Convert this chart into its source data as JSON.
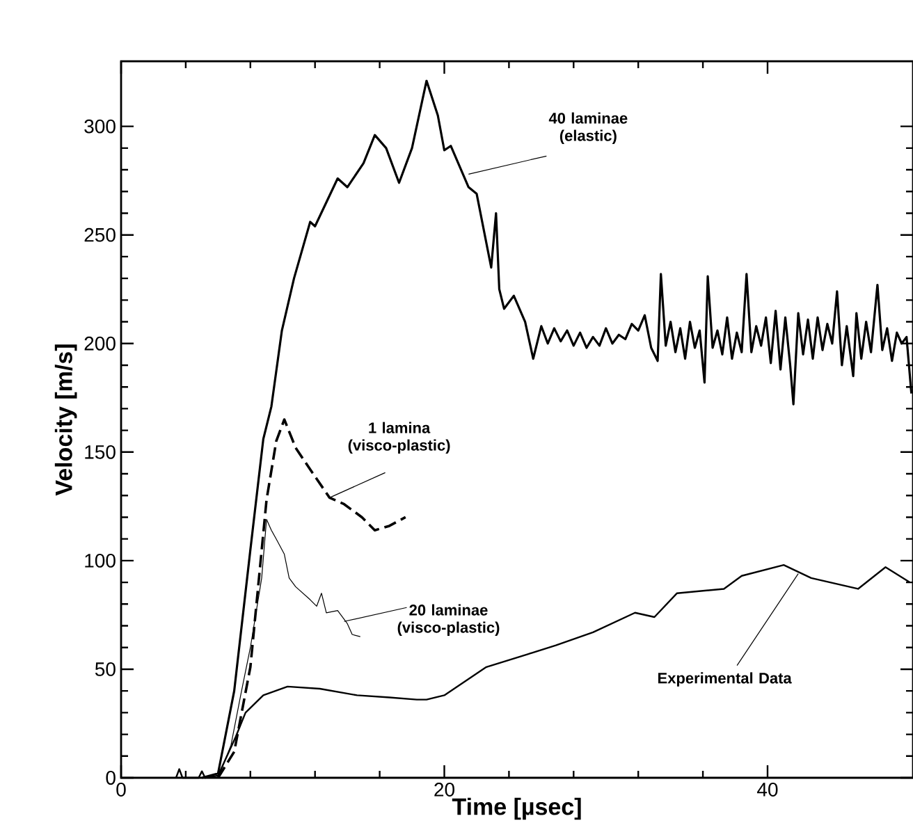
{
  "chart_data": {
    "type": "line",
    "xlabel": "Time [µsec]",
    "ylabel": "Velocity [m/s]",
    "xlim": [
      0,
      49
    ],
    "ylim": [
      0,
      330
    ],
    "xticks": [
      0,
      20,
      40
    ],
    "yticks": [
      0,
      50,
      100,
      150,
      200,
      250,
      300
    ],
    "series": [
      {
        "color": "#000000",
        "line_style": "solid",
        "x": [
          5.0,
          6.0,
          7.0,
          8.0,
          8.8,
          9.3,
          9.95,
          10.7,
          11.7,
          12.0,
          13.4,
          14.0,
          15.0,
          15.7,
          16.4,
          17.2,
          18.0,
          18.9,
          19.6,
          20.0,
          20.4,
          21.5,
          22.0,
          22.9,
          23.2,
          23.4,
          23.7,
          24.3,
          25.0,
          25.5,
          26.0,
          26.4,
          26.8,
          27.2,
          27.6,
          28.0,
          28.4,
          28.8,
          29.2,
          29.6,
          30.0,
          30.4,
          30.8,
          31.2,
          31.6,
          32.0,
          32.4,
          32.8,
          33.2,
          33.4,
          33.7,
          34.0,
          34.3,
          34.6,
          34.9,
          35.2,
          35.5,
          35.8,
          36.1,
          36.3,
          36.6,
          36.9,
          37.2,
          37.5,
          37.8,
          38.1,
          38.4,
          38.7,
          39.0,
          39.3,
          39.6,
          39.9,
          40.2,
          40.5,
          40.8,
          41.1,
          41.4,
          41.6,
          41.9,
          42.2,
          42.5,
          42.8,
          43.1,
          43.4,
          43.7,
          44.0,
          44.3,
          44.6,
          44.9,
          45.3,
          45.5,
          45.8,
          46.1,
          46.4,
          46.8,
          47.1,
          47.4,
          47.7,
          48.0,
          48.3,
          48.6,
          48.9
        ],
        "values": [
          0,
          2,
          40,
          105,
          156,
          171,
          206,
          230,
          256,
          254,
          276,
          272,
          283,
          296,
          290,
          274,
          290,
          321,
          305,
          289,
          291,
          272,
          269,
          235,
          260,
          225,
          216,
          222,
          210,
          193,
          208,
          200,
          207,
          201,
          206,
          199,
          205,
          198,
          203,
          199,
          207,
          200,
          204,
          202,
          209,
          206,
          213,
          198,
          192,
          232,
          199,
          210,
          196,
          207,
          193,
          210,
          198,
          206,
          182,
          231,
          198,
          206,
          195,
          212,
          193,
          205,
          196,
          232,
          196,
          208,
          199,
          212,
          191,
          215,
          188,
          212,
          190,
          172,
          214,
          195,
          211,
          193,
          212,
          197,
          209,
          200,
          224,
          190,
          208,
          185,
          214,
          193,
          210,
          196,
          227,
          197,
          207,
          192,
          205,
          200,
          203,
          177
        ]
      },
      {
        "color": "#000000",
        "line_style": "dashed",
        "x": [
          6.0,
          7.0,
          8.0,
          9.0,
          9.6,
          10.1,
          10.8,
          11.7,
          12.9,
          13.8,
          14.9,
          15.7,
          16.6,
          17.6
        ],
        "values": [
          0,
          12,
          51,
          128,
          155,
          165,
          152,
          142,
          129,
          126,
          120,
          114,
          116,
          120
        ]
      },
      {
        "color": "#000000",
        "line_style": "solid",
        "x": [
          6.0,
          6.8,
          7.4,
          8.0,
          8.7,
          9.0,
          9.3,
          9.6,
          10.1,
          10.4,
          10.8,
          11.7,
          12.1,
          12.4,
          12.7,
          13.4,
          14.0,
          14.3,
          14.8
        ],
        "values": [
          0,
          15,
          38,
          60,
          92,
          119,
          114,
          110,
          103,
          92,
          88,
          82,
          79,
          85,
          76,
          77,
          71,
          66,
          65
        ]
      },
      {
        "color": "#000000",
        "line_style": "solid",
        "x": [
          3.4,
          3.6,
          3.8,
          4.8,
          5.0,
          5.2,
          6.0,
          7.1,
          7.7,
          8.8,
          10.3,
          12.3,
          14.6,
          16.6,
          18.3,
          18.9,
          20.0,
          22.6,
          25.2,
          26.9,
          29.2,
          31.8,
          33.0,
          34.4,
          37.3,
          38.4,
          41.0,
          42.7,
          45.6,
          47.3,
          48.8
        ],
        "values": [
          0,
          4,
          0,
          0,
          3,
          0,
          1,
          19,
          30,
          38,
          42,
          41,
          38,
          37,
          36,
          36,
          38,
          51,
          57,
          61,
          67,
          76,
          74,
          85,
          87,
          93,
          98,
          92,
          87,
          97,
          90
        ]
      }
    ],
    "annotations": [
      {
        "text": "40 laminae (elastic)",
        "x": 21.5,
        "y": 278
      },
      {
        "text": "1 lamina (visco-plastic)",
        "x": 12.9,
        "y": 129
      },
      {
        "text": "20 laminae (visco-plastic)",
        "x": 13.8,
        "y": 72
      },
      {
        "text": "Experimental Data",
        "x": 41.9,
        "y": 94
      }
    ]
  }
}
